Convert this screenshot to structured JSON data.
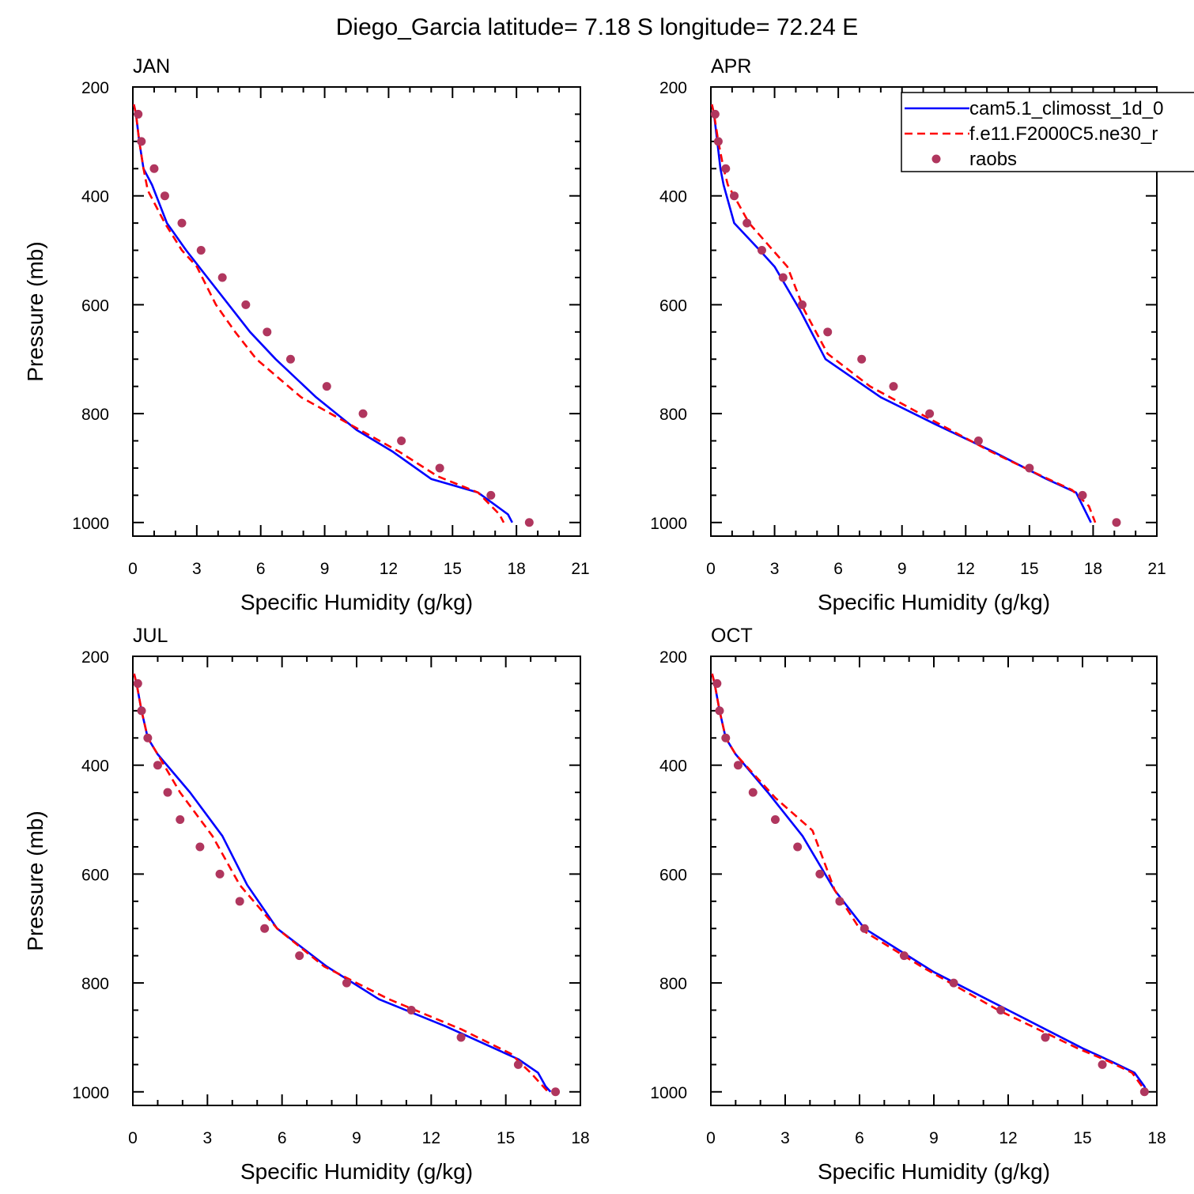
{
  "title": "Diego_Garcia  latitude= 7.18 S longitude= 72.24 E",
  "legend": {
    "entries": [
      {
        "label": "cam5.1_climosst_1d_0",
        "color": "#0000ff",
        "style": "solid"
      },
      {
        "label": "f.e11.F2000C5.ne30_r",
        "color": "#ff0000",
        "style": "dashed"
      },
      {
        "label": "raobs",
        "color": "#b0365e",
        "style": "marker"
      }
    ]
  },
  "chart_data": [
    {
      "type": "line",
      "label": "JAN",
      "xlabel": "Specific Humidity (g/kg)",
      "ylabel": "Pressure (mb)",
      "xlim": [
        0,
        21
      ],
      "ylim": [
        200,
        1025
      ],
      "xticks": [
        0,
        3,
        6,
        9,
        12,
        15,
        18,
        21
      ],
      "yticks": [
        200,
        400,
        600,
        800,
        1000
      ],
      "series": [
        {
          "name": "cam5.1_climosst_1d_0",
          "x": [
            0.05,
            0.15,
            0.3,
            0.5,
            0.9,
            1.6,
            2.5,
            3.5,
            4.5,
            5.5,
            6.7,
            8.6,
            10.5,
            12.2,
            14,
            16.2,
            17.6,
            17.8
          ],
          "y": [
            232,
            250,
            300,
            350,
            380,
            450,
            500,
            550,
            600,
            650,
            700,
            770,
            830,
            870,
            920,
            945,
            985,
            1000
          ]
        },
        {
          "name": "f.e11.F2000C5.ne30_r",
          "x": [
            0.05,
            0.15,
            0.3,
            0.5,
            0.7,
            1.5,
            2.3,
            3.0,
            3.9,
            4.8,
            5.8,
            7.9,
            10.2,
            12.5,
            14.3,
            16.2,
            17.2,
            17.4
          ],
          "y": [
            232,
            250,
            300,
            350,
            390,
            450,
            500,
            530,
            600,
            650,
            700,
            770,
            820,
            870,
            915,
            945,
            985,
            1000
          ]
        },
        {
          "name": "raobs",
          "x": [
            0.25,
            0.4,
            1.0,
            1.5,
            2.3,
            3.2,
            4.2,
            5.3,
            6.3,
            7.4,
            9.1,
            10.8,
            12.6,
            14.4,
            16.8,
            18.6
          ],
          "y": [
            250,
            300,
            350,
            400,
            450,
            500,
            550,
            600,
            650,
            700,
            750,
            800,
            850,
            900,
            950,
            1000
          ]
        }
      ]
    },
    {
      "type": "line",
      "label": "APR",
      "xlabel": "Specific Humidity (g/kg)",
      "ylabel": "",
      "xlim": [
        0,
        21
      ],
      "ylim": [
        200,
        1025
      ],
      "xticks": [
        0,
        3,
        6,
        9,
        12,
        15,
        18,
        21
      ],
      "yticks": [
        200,
        400,
        600,
        800,
        1000
      ],
      "series": [
        {
          "name": "cam5.1_climosst_1d_0",
          "x": [
            0.05,
            0.15,
            0.3,
            0.45,
            0.6,
            1.1,
            2.3,
            3.0,
            4.2,
            5.4,
            8.0,
            10.6,
            13.3,
            15.8,
            17.2,
            17.9
          ],
          "y": [
            232,
            250,
            300,
            350,
            380,
            450,
            500,
            530,
            610,
            700,
            770,
            820,
            870,
            920,
            945,
            1000
          ]
        },
        {
          "name": "f.e11.F2000C5.ne30_r",
          "x": [
            0.05,
            0.15,
            0.35,
            0.6,
            0.8,
            1.8,
            3.6,
            4.4,
            5.5,
            7.5,
            10.8,
            13.2,
            15.6,
            17.0,
            17.8,
            18.1
          ],
          "y": [
            232,
            250,
            300,
            350,
            380,
            450,
            530,
            610,
            690,
            750,
            820,
            870,
            915,
            940,
            970,
            1000
          ]
        },
        {
          "name": "raobs",
          "x": [
            0.2,
            0.35,
            0.7,
            1.1,
            1.7,
            2.4,
            3.4,
            4.3,
            5.5,
            7.1,
            8.6,
            10.3,
            12.6,
            15.0,
            17.5,
            19.1
          ],
          "y": [
            250,
            300,
            350,
            400,
            450,
            500,
            550,
            600,
            650,
            700,
            750,
            800,
            850,
            900,
            950,
            1000
          ]
        }
      ]
    },
    {
      "type": "line",
      "label": "JUL",
      "xlabel": "Specific Humidity (g/kg)",
      "ylabel": "Pressure (mb)",
      "xlim": [
        0,
        18
      ],
      "ylim": [
        200,
        1025
      ],
      "xticks": [
        0,
        3,
        6,
        9,
        12,
        15,
        18
      ],
      "yticks": [
        200,
        400,
        600,
        800,
        1000
      ],
      "series": [
        {
          "name": "cam5.1_climosst_1d_0",
          "x": [
            0.05,
            0.15,
            0.35,
            0.6,
            1.0,
            2.3,
            3.6,
            4.6,
            5.8,
            7.8,
            9.9,
            12.6,
            15.5,
            16.3,
            16.6,
            16.8
          ],
          "y": [
            232,
            250,
            300,
            350,
            380,
            450,
            530,
            620,
            700,
            770,
            830,
            880,
            940,
            965,
            990,
            1000
          ]
        },
        {
          "name": "f.e11.F2000C5.ne30_r",
          "x": [
            0.05,
            0.15,
            0.35,
            0.6,
            1.0,
            1.9,
            3.2,
            4.3,
            5.8,
            7.7,
            10.3,
            13.2,
            15.2,
            16.0,
            16.5,
            16.7
          ],
          "y": [
            232,
            250,
            300,
            350,
            380,
            450,
            530,
            620,
            700,
            770,
            830,
            885,
            930,
            965,
            990,
            1000
          ]
        },
        {
          "name": "raobs",
          "x": [
            0.2,
            0.35,
            0.6,
            1.0,
            1.4,
            1.9,
            2.7,
            3.5,
            4.3,
            5.3,
            6.7,
            8.6,
            11.2,
            13.2,
            15.5,
            17.0
          ],
          "y": [
            250,
            300,
            350,
            400,
            450,
            500,
            550,
            600,
            650,
            700,
            750,
            800,
            850,
            900,
            950,
            1000
          ]
        }
      ]
    },
    {
      "type": "line",
      "label": "OCT",
      "xlabel": "Specific Humidity (g/kg)",
      "ylabel": "",
      "xlim": [
        0,
        18
      ],
      "ylim": [
        200,
        1025
      ],
      "xticks": [
        0,
        3,
        6,
        9,
        12,
        15,
        18
      ],
      "yticks": [
        200,
        400,
        600,
        800,
        1000
      ],
      "series": [
        {
          "name": "cam5.1_climosst_1d_0",
          "x": [
            0.05,
            0.15,
            0.35,
            0.6,
            1.0,
            2.3,
            3.7,
            5.0,
            6.2,
            9.0,
            12.0,
            15.0,
            16.2,
            17.1,
            17.5,
            17.6
          ],
          "y": [
            232,
            250,
            300,
            350,
            380,
            450,
            530,
            630,
            700,
            780,
            850,
            920,
            945,
            965,
            990,
            1000
          ]
        },
        {
          "name": "f.e11.F2000C5.ne30_r",
          "x": [
            0.05,
            0.15,
            0.35,
            0.6,
            1.0,
            2.6,
            4.1,
            5.0,
            6.0,
            8.5,
            11.6,
            14.8,
            16.1,
            17.0,
            17.4,
            17.5
          ],
          "y": [
            232,
            250,
            300,
            350,
            380,
            460,
            520,
            630,
            700,
            770,
            850,
            920,
            945,
            965,
            990,
            1000
          ]
        },
        {
          "name": "raobs",
          "x": [
            0.25,
            0.35,
            0.6,
            1.1,
            1.7,
            2.6,
            3.5,
            4.4,
            5.2,
            6.2,
            7.8,
            9.8,
            11.7,
            13.5,
            15.8,
            17.5
          ],
          "y": [
            250,
            300,
            350,
            400,
            450,
            500,
            550,
            600,
            650,
            700,
            750,
            800,
            850,
            900,
            950,
            1000
          ]
        }
      ]
    }
  ]
}
